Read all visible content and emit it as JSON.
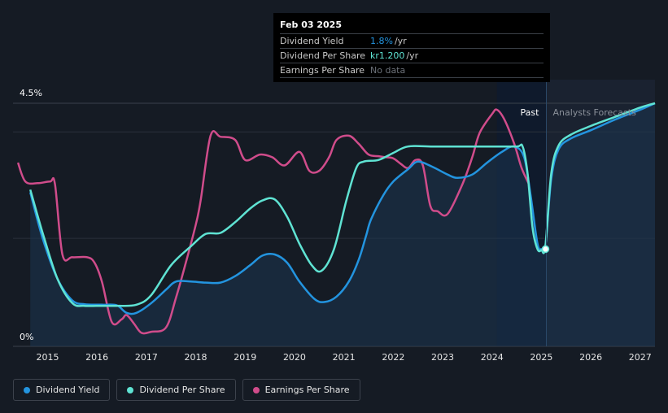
{
  "colors": {
    "dividend_yield": "#2394df",
    "dividend_per_share": "#5fe3d3",
    "earnings_per_share": "#d04c8b",
    "background": "#151b24",
    "past_region": "#0f1a2c"
  },
  "tooltip": {
    "date": "Feb 03 2025",
    "rows": [
      {
        "name": "Dividend Yield",
        "value": "1.8%",
        "unit": "/yr",
        "color": "#2394df"
      },
      {
        "name": "Dividend Per Share",
        "value": "kr1.200",
        "unit": "/yr",
        "color": "#5fe3d3"
      },
      {
        "name": "Earnings Per Share",
        "value": "No data",
        "unit": "",
        "color": "#6b7078"
      }
    ]
  },
  "regions": {
    "past_label": "Past",
    "forecast_label": "Analysts Forecasts"
  },
  "legend": [
    {
      "label": "Dividend Yield",
      "color": "#2394df"
    },
    {
      "label": "Dividend Per Share",
      "color": "#5fe3d3"
    },
    {
      "label": "Earnings Per Share",
      "color": "#d04c8b"
    }
  ],
  "chart_data": {
    "type": "line",
    "x_ticks": [
      "2015",
      "2016",
      "2017",
      "2018",
      "2019",
      "2020",
      "2021",
      "2022",
      "2023",
      "2024",
      "2025",
      "2026",
      "2027"
    ],
    "y_tick_labels": [
      "4.5%",
      "0%"
    ],
    "ylim": [
      0,
      4.5
    ],
    "xlim": [
      2014.3,
      2027.3
    ],
    "past_start": 2024.1,
    "forecast_start": 2025.1,
    "grid": true,
    "legend_position": "bottom-left",
    "series": [
      {
        "name": "Dividend Yield",
        "axis": "yield_pct",
        "points": [
          [
            2014.65,
            2.85
          ],
          [
            2014.9,
            2.0
          ],
          [
            2015.2,
            1.25
          ],
          [
            2015.5,
            0.85
          ],
          [
            2015.75,
            0.78
          ],
          [
            2016.1,
            0.77
          ],
          [
            2016.4,
            0.76
          ],
          [
            2016.6,
            0.62
          ],
          [
            2016.8,
            0.62
          ],
          [
            2017.1,
            0.8
          ],
          [
            2017.4,
            1.05
          ],
          [
            2017.6,
            1.2
          ],
          [
            2017.9,
            1.2
          ],
          [
            2018.2,
            1.18
          ],
          [
            2018.5,
            1.18
          ],
          [
            2018.8,
            1.3
          ],
          [
            2019.1,
            1.5
          ],
          [
            2019.35,
            1.68
          ],
          [
            2019.6,
            1.7
          ],
          [
            2019.85,
            1.55
          ],
          [
            2020.1,
            1.2
          ],
          [
            2020.4,
            0.88
          ],
          [
            2020.6,
            0.82
          ],
          [
            2020.85,
            0.92
          ],
          [
            2021.1,
            1.2
          ],
          [
            2021.3,
            1.6
          ],
          [
            2021.45,
            2.05
          ],
          [
            2021.55,
            2.35
          ],
          [
            2021.8,
            2.8
          ],
          [
            2022.0,
            3.05
          ],
          [
            2022.3,
            3.28
          ],
          [
            2022.5,
            3.42
          ],
          [
            2022.8,
            3.32
          ],
          [
            2023.1,
            3.18
          ],
          [
            2023.3,
            3.12
          ],
          [
            2023.6,
            3.18
          ],
          [
            2023.9,
            3.4
          ],
          [
            2024.2,
            3.6
          ],
          [
            2024.45,
            3.7
          ],
          [
            2024.65,
            3.5
          ],
          [
            2024.78,
            2.8
          ],
          [
            2024.92,
            1.9
          ],
          [
            2025.0,
            1.8
          ],
          [
            2025.08,
            1.85
          ],
          [
            2025.2,
            3.1
          ],
          [
            2025.35,
            3.65
          ],
          [
            2025.6,
            3.85
          ],
          [
            2026.0,
            4.0
          ],
          [
            2026.5,
            4.2
          ],
          [
            2027.0,
            4.38
          ],
          [
            2027.3,
            4.5
          ]
        ]
      },
      {
        "name": "Dividend Per Share",
        "axis": "dps_scaled",
        "points": [
          [
            2014.65,
            2.9
          ],
          [
            2014.9,
            2.1
          ],
          [
            2015.2,
            1.25
          ],
          [
            2015.5,
            0.8
          ],
          [
            2015.75,
            0.75
          ],
          [
            2016.1,
            0.75
          ],
          [
            2016.4,
            0.75
          ],
          [
            2016.8,
            0.77
          ],
          [
            2017.1,
            0.95
          ],
          [
            2017.5,
            1.5
          ],
          [
            2017.9,
            1.85
          ],
          [
            2018.2,
            2.08
          ],
          [
            2018.5,
            2.1
          ],
          [
            2018.8,
            2.3
          ],
          [
            2019.1,
            2.55
          ],
          [
            2019.35,
            2.7
          ],
          [
            2019.6,
            2.72
          ],
          [
            2019.85,
            2.4
          ],
          [
            2020.1,
            1.9
          ],
          [
            2020.35,
            1.5
          ],
          [
            2020.55,
            1.4
          ],
          [
            2020.8,
            1.8
          ],
          [
            2021.05,
            2.7
          ],
          [
            2021.25,
            3.3
          ],
          [
            2021.4,
            3.42
          ],
          [
            2021.7,
            3.45
          ],
          [
            2022.0,
            3.58
          ],
          [
            2022.3,
            3.7
          ],
          [
            2022.8,
            3.7
          ],
          [
            2023.5,
            3.7
          ],
          [
            2024.0,
            3.7
          ],
          [
            2024.5,
            3.7
          ],
          [
            2024.62,
            3.7
          ],
          [
            2024.72,
            3.2
          ],
          [
            2024.82,
            2.2
          ],
          [
            2024.92,
            1.8
          ],
          [
            2025.0,
            1.78
          ],
          [
            2025.08,
            1.85
          ],
          [
            2025.2,
            3.2
          ],
          [
            2025.35,
            3.72
          ],
          [
            2025.6,
            3.92
          ],
          [
            2026.0,
            4.08
          ],
          [
            2026.5,
            4.25
          ],
          [
            2027.0,
            4.42
          ],
          [
            2027.3,
            4.5
          ]
        ]
      },
      {
        "name": "Earnings Per Share",
        "axis": "eps_scaled",
        "points": [
          [
            2014.4,
            3.4
          ],
          [
            2014.55,
            3.05
          ],
          [
            2014.8,
            3.02
          ],
          [
            2015.05,
            3.05
          ],
          [
            2015.15,
            3.0
          ],
          [
            2015.3,
            1.7
          ],
          [
            2015.5,
            1.65
          ],
          [
            2015.8,
            1.65
          ],
          [
            2015.95,
            1.55
          ],
          [
            2016.1,
            1.2
          ],
          [
            2016.3,
            0.45
          ],
          [
            2016.5,
            0.5
          ],
          [
            2016.6,
            0.58
          ],
          [
            2016.75,
            0.42
          ],
          [
            2016.9,
            0.25
          ],
          [
            2017.1,
            0.27
          ],
          [
            2017.4,
            0.35
          ],
          [
            2017.6,
            0.9
          ],
          [
            2017.8,
            1.55
          ],
          [
            2018.0,
            2.25
          ],
          [
            2018.1,
            2.7
          ],
          [
            2018.3,
            3.9
          ],
          [
            2018.5,
            3.88
          ],
          [
            2018.8,
            3.82
          ],
          [
            2019.0,
            3.45
          ],
          [
            2019.3,
            3.55
          ],
          [
            2019.55,
            3.5
          ],
          [
            2019.8,
            3.35
          ],
          [
            2020.1,
            3.6
          ],
          [
            2020.3,
            3.25
          ],
          [
            2020.5,
            3.25
          ],
          [
            2020.7,
            3.5
          ],
          [
            2020.85,
            3.82
          ],
          [
            2021.1,
            3.9
          ],
          [
            2021.3,
            3.75
          ],
          [
            2021.5,
            3.55
          ],
          [
            2021.7,
            3.52
          ],
          [
            2021.85,
            3.5
          ],
          [
            2022.0,
            3.48
          ],
          [
            2022.15,
            3.38
          ],
          [
            2022.3,
            3.3
          ],
          [
            2022.45,
            3.45
          ],
          [
            2022.6,
            3.35
          ],
          [
            2022.75,
            2.6
          ],
          [
            2022.9,
            2.5
          ],
          [
            2023.1,
            2.45
          ],
          [
            2023.4,
            3.0
          ],
          [
            2023.6,
            3.5
          ],
          [
            2023.75,
            3.95
          ],
          [
            2024.0,
            4.3
          ],
          [
            2024.1,
            4.38
          ],
          [
            2024.25,
            4.2
          ],
          [
            2024.45,
            3.75
          ],
          [
            2024.6,
            3.3
          ],
          [
            2024.75,
            3.0
          ]
        ]
      }
    ]
  }
}
